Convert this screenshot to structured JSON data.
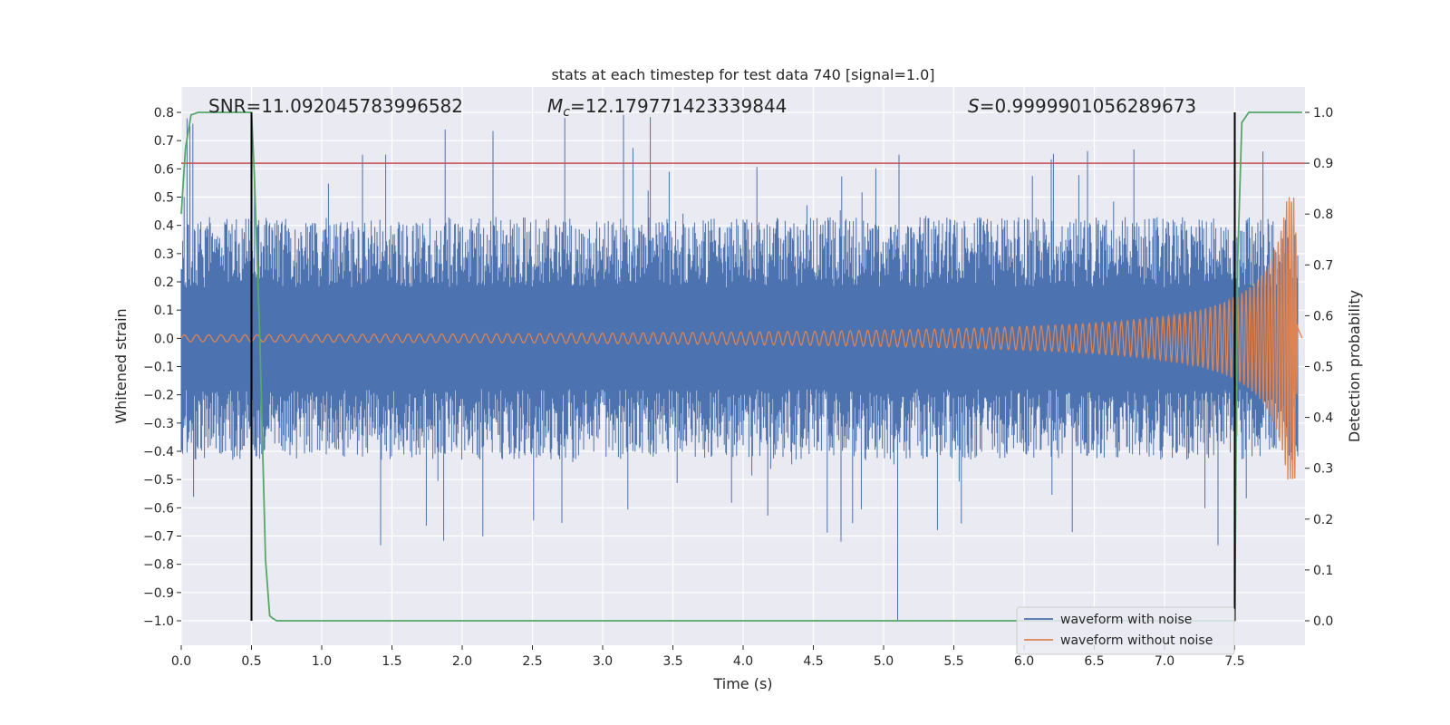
{
  "chart_data": {
    "type": "line",
    "title": "stats at each timestep for test data 740 [signal=1.0]",
    "xlabel": "Time (s)",
    "ylabel_left": "Whitened strain",
    "ylabel_right": "Detection probability",
    "xlim": [
      0.0,
      8.0
    ],
    "ylim_left": [
      -1.0,
      0.8
    ],
    "ylim_right": [
      0.0,
      1.0
    ],
    "x_ticks": [
      "0.0",
      "0.5",
      "1.0",
      "1.5",
      "2.0",
      "2.5",
      "3.0",
      "3.5",
      "4.0",
      "4.5",
      "5.0",
      "5.5",
      "6.0",
      "6.5",
      "7.0",
      "7.5"
    ],
    "y_ticks_left": [
      "0.8",
      "0.7",
      "0.6",
      "0.5",
      "0.4",
      "0.3",
      "0.2",
      "0.1",
      "0.0",
      "−0.1",
      "−0.2",
      "−0.3",
      "−0.4",
      "−0.5",
      "−0.6",
      "−0.7",
      "−0.8",
      "−0.9",
      "−1.0"
    ],
    "y_ticks_right": [
      "1.0",
      "0.9",
      "0.8",
      "0.7",
      "0.6",
      "0.5",
      "0.4",
      "0.3",
      "0.2",
      "0.1",
      "0.0"
    ],
    "grid": true,
    "legend_position": "lower-right",
    "annotations": {
      "snr": "SNR=11.092045783996582",
      "mc_symbol": "M",
      "mc_subscript": "c",
      "mc_value": "=12.179771423339844",
      "s_symbol": "S",
      "s_value": "=0.9999901056289673"
    },
    "series": [
      {
        "name": "waveform with noise",
        "axis": "left",
        "color": "#4c72b0",
        "envelope": {
          "typical_low": -0.3,
          "typical_high": 0.3,
          "max": 0.8,
          "min": -1.0
        }
      },
      {
        "name": "waveform without noise",
        "axis": "left",
        "color": "#dd8452",
        "chirp": {
          "start_amplitude": 0.012,
          "peak_amplitude": 0.5,
          "peak_time": 7.93,
          "end_time": 7.95
        }
      }
    ],
    "detection_probability": {
      "axis": "right",
      "color": "#55a868",
      "x": [
        0.0,
        0.03,
        0.07,
        0.12,
        0.2,
        0.35,
        0.5,
        0.52,
        0.56,
        0.6,
        0.63,
        0.65,
        0.68,
        0.7,
        1.0,
        2.0,
        3.0,
        4.0,
        5.0,
        6.0,
        7.0,
        7.48,
        7.5,
        7.52,
        7.55,
        7.6,
        7.7,
        7.8,
        7.9,
        7.98
      ],
      "y": [
        0.8,
        0.93,
        0.995,
        1.0,
        1.0,
        1.0,
        1.0,
        0.88,
        0.55,
        0.12,
        0.01,
        0.005,
        0.0,
        0.0,
        0.0,
        0.0,
        0.0,
        0.0,
        0.0,
        0.0,
        0.0,
        0.0,
        0.0,
        0.7,
        0.98,
        1.0,
        1.0,
        1.0,
        1.0,
        1.0
      ]
    },
    "threshold_line": {
      "axis": "right",
      "y": 0.9,
      "color": "#c44e52"
    },
    "vertical_lines": {
      "x": [
        0.5,
        7.5
      ],
      "color": "#000000"
    }
  }
}
